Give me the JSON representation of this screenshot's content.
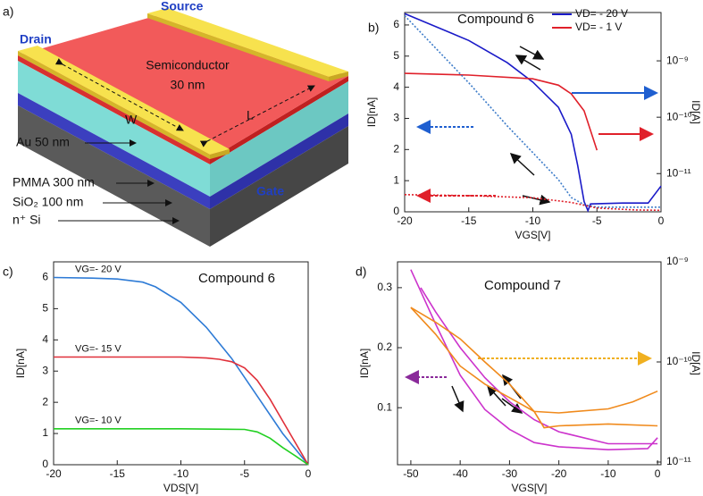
{
  "diagram": {
    "panel_label": "a)",
    "source": "Source",
    "drain": "Drain",
    "semiconductor": "Semiconductor",
    "semiconductor_thickness": "30 nm",
    "width": "W",
    "length": "L",
    "au": "Au 50 nm",
    "pmma": "PMMA 300 nm",
    "sio2": "SiO₂ 100 nm",
    "si": "n⁺ Si",
    "gate": "Gate"
  },
  "panel_labels": [
    "b)",
    "c)",
    "d)"
  ],
  "chart_data": [
    {
      "type": "line",
      "title": "Compound 6",
      "xlabel": "VGS[V]",
      "ylabel": "ID[nA]",
      "y2label": "ID[A]",
      "legend": "upper right",
      "xlim": [
        -20,
        0
      ],
      "xticks": [
        -20,
        -15,
        -10,
        -5,
        0
      ],
      "ylim": [
        0,
        6.4
      ],
      "yticks": [
        0,
        1,
        2,
        3,
        4,
        5,
        6
      ],
      "y2lim": [
        2.1e-12,
        7.2e-09
      ],
      "y2log": true,
      "y2ticks": [
        {
          "value": 1e-09,
          "label": "10⁻⁹"
        },
        {
          "value": 1e-10,
          "label": "10⁻¹⁰"
        },
        {
          "value": 1e-11,
          "label": "10⁻¹¹"
        }
      ],
      "series": [
        {
          "name": "VD= - 20 V",
          "color": "#1a1ac8",
          "axis": "y2",
          "x": [
            -20,
            -15,
            -12,
            -10,
            -8,
            -7,
            -6.5,
            -6,
            -5.7,
            -5.5,
            -3,
            -1,
            0
          ],
          "values": [
            6.9e-09,
            2.3e-09,
            9.3e-10,
            4.2e-10,
            1.5e-10,
            5e-11,
            1.4e-11,
            3.2e-12,
            2.2e-12,
            2.9e-12,
            3e-12,
            3e-12,
            6e-12
          ]
        },
        {
          "name": "VD= - 1 V",
          "color": "#e0202a",
          "axis": "y2",
          "x": [
            -20,
            -15,
            -10,
            -8,
            -7,
            -6,
            -5
          ],
          "values": [
            6e-10,
            5.6e-10,
            4.8e-10,
            3.7e-10,
            2.6e-10,
            1.3e-10,
            2.6e-11
          ]
        },
        {
          "color": "#3d7cc9",
          "dash": "dotted",
          "x": [
            -20,
            -15,
            -12,
            -10,
            -8,
            -7,
            -6,
            -5,
            0
          ],
          "values": [
            6.3,
            4.14,
            2.76,
            1.9,
            1.03,
            0.46,
            0.23,
            0.15,
            0.15
          ]
        },
        {
          "color": "#e0202a",
          "dash": "dotted",
          "x": [
            -20,
            -15,
            -10,
            -7,
            -5,
            -2,
            0
          ],
          "values": [
            0.55,
            0.52,
            0.45,
            0.3,
            0.12,
            0.06,
            0.05
          ]
        }
      ]
    },
    {
      "type": "line",
      "title": "Compound 6",
      "xlabel": "VDS[V]",
      "ylabel": "ID[nA]",
      "xlim": [
        -20,
        0
      ],
      "xticks": [
        -20,
        -15,
        -10,
        -5,
        0
      ],
      "ylim": [
        0,
        6.5
      ],
      "yticks": [
        0,
        1,
        2,
        3,
        4,
        5,
        6
      ],
      "series": [
        {
          "name": "VG=- 20 V",
          "color": "#2e7bd6",
          "x": [
            -20,
            -17,
            -15,
            -13,
            -12,
            -10,
            -8,
            -6,
            -4,
            -2,
            0
          ],
          "values": [
            6.0,
            5.98,
            5.95,
            5.85,
            5.7,
            5.2,
            4.4,
            3.4,
            2.2,
            1.0,
            0
          ]
        },
        {
          "name": "VG=- 15 V",
          "color": "#e0303a",
          "x": [
            -20,
            -15,
            -10,
            -8,
            -7,
            -6,
            -5,
            -4,
            -3,
            -2,
            -1,
            0
          ],
          "values": [
            3.45,
            3.45,
            3.45,
            3.42,
            3.38,
            3.3,
            3.1,
            2.7,
            2.1,
            1.4,
            0.7,
            0
          ]
        },
        {
          "name": "VG=- 10 V",
          "color": "#22d022",
          "x": [
            -20,
            -10,
            -5,
            -4,
            -3,
            -2,
            -1,
            0
          ],
          "values": [
            1.15,
            1.15,
            1.13,
            1.05,
            0.85,
            0.55,
            0.28,
            0
          ]
        }
      ]
    },
    {
      "type": "line",
      "title": "Compound 7",
      "xlabel": "VGS[V]",
      "ylabel": "ID[nA]",
      "y2label": "ID[A]",
      "xlim": [
        -52.7,
        0.7
      ],
      "xticks": [
        -50,
        -40,
        -30,
        -20,
        -10,
        0
      ],
      "ylim": [
        0.005,
        0.343
      ],
      "yticks": [
        0.1,
        0.2,
        0.3
      ],
      "y2lim": [
        9.4e-12,
        1e-09
      ],
      "y2log": true,
      "y2ticks": [
        {
          "value": 1e-09,
          "label": "10⁻⁹"
        },
        {
          "value": 1e-10,
          "label": "10⁻¹⁰"
        },
        {
          "value": 1e-11,
          "label": "10⁻¹¹"
        }
      ],
      "series": [
        {
          "color": "#cc33cc",
          "x": [
            -50,
            -45,
            -40,
            -35,
            -30,
            -25,
            -20,
            -10,
            -2,
            0
          ],
          "values": [
            0.33,
            0.24,
            0.154,
            0.097,
            0.064,
            0.042,
            0.035,
            0.03,
            0.032,
            0.05
          ]
        },
        {
          "color": "#cc33cc",
          "x": [
            -48,
            -45,
            -40,
            -35,
            -30,
            -25,
            -20,
            -10,
            0
          ],
          "values": [
            0.3,
            0.26,
            0.2,
            0.15,
            0.11,
            0.08,
            0.06,
            0.04,
            0.04
          ]
        },
        {
          "color": "#f08a1c",
          "axis": "y2",
          "x": [
            -50,
            -45,
            -40,
            -35,
            -30,
            -25,
            -23,
            -20,
            -10,
            0
          ],
          "values": [
            3.5e-10,
            1.9e-10,
            9.1e-11,
            6e-11,
            4.4e-11,
            3.2e-11,
            2.2e-11,
            2.3e-11,
            2.4e-11,
            2.3e-11
          ]
        },
        {
          "color": "#f08a1c",
          "axis": "y2",
          "x": [
            -50,
            -45,
            -40,
            -35,
            -30,
            -25,
            -20,
            -10,
            -5,
            0
          ],
          "values": [
            3.5e-10,
            2.5e-10,
            1.7e-10,
            1e-10,
            6e-11,
            3.2e-11,
            3.1e-11,
            3.4e-11,
            4e-11,
            5.1e-11
          ]
        }
      ]
    }
  ]
}
